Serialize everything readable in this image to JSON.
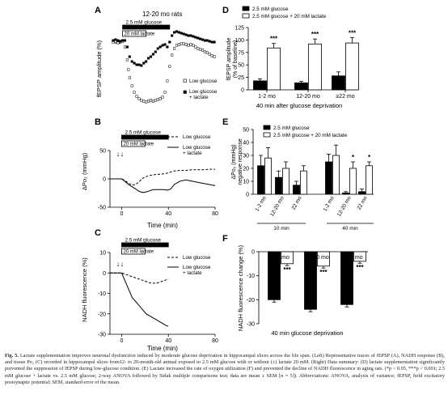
{
  "caption": {
    "label": "Fig. 5.",
    "text": "Lactate supplementation improves neuronal dysfunction induced by moderate glucose deprivation in hippocampal slices across the life span. (Left) Representative traces of fEPSP (A), NADH response (B), and tissue Po₂ (C) recorded in hippocampal slices from12- to 20-month-old animal exposed to 2.5 mM glucose with or without (±) lactate 20 mM. (Right) Data summary: (D) lactate supplementation significantly prevented the suppression of fEPSP during low-glucose condition. (E) Lactate increased the rate of oxygen utilization (F) and prevented the decline of NADH fluorescence in aging rats. (*p < 0.05, ***p < 0.001; 2.5 mM glucose + lactate vs. 2.5 mM glucose; 2-way ANOVA followed by Sidak multiple comparisons test; data are mean ± SEM [n = 5]). Abbreviations: ANOVA, analysis of variance; fEPSP, field excitatory postsynaptic potential; SEM, standard error of the mean."
  },
  "chart_data": [
    {
      "panel": "A",
      "type": "scatter",
      "title": "12-20 mo rats",
      "ylabel": "fEPSP amplitude (%)",
      "bars": [
        "2.5 mM glucose",
        "20 mM lactate"
      ],
      "xlim": [
        -10,
        80
      ],
      "ylim": [
        0,
        100
      ],
      "series": [
        {
          "name": "Low glucose",
          "marker": "open-square",
          "x": [
            -8,
            -6,
            -4,
            -2,
            0,
            2,
            4,
            5,
            6,
            8,
            10,
            12,
            14,
            16,
            18,
            20,
            22,
            24,
            26,
            28,
            30,
            32,
            34,
            36,
            38,
            40,
            42,
            44,
            46,
            48,
            50,
            52,
            54,
            56,
            58,
            60,
            62,
            64,
            66,
            68,
            70,
            72,
            74,
            76,
            78
          ],
          "y": [
            78,
            79,
            77,
            78,
            79,
            72,
            56,
            44,
            34,
            24,
            16,
            11,
            8,
            6,
            5,
            4,
            5,
            6,
            5,
            6,
            7,
            8,
            10,
            16,
            30,
            48,
            62,
            70,
            74,
            75,
            76,
            76,
            75,
            74,
            75,
            74,
            72,
            70,
            69,
            68,
            66,
            65,
            63,
            61,
            60
          ]
        },
        {
          "name": "Low glucose + lactate",
          "marker": "filled-square",
          "x": [
            -8,
            -6,
            -4,
            -2,
            0,
            2,
            4,
            6,
            8,
            10,
            12,
            14,
            16,
            18,
            20,
            22,
            24,
            26,
            28,
            30,
            32,
            34,
            36,
            38,
            40,
            42,
            44,
            46,
            48,
            50,
            52,
            54,
            56,
            58,
            60,
            62,
            64,
            66,
            68,
            70,
            72,
            74,
            76,
            78
          ],
          "y": [
            80,
            81,
            80,
            79,
            80,
            80,
            72,
            60,
            54,
            52,
            50,
            50,
            49,
            52,
            54,
            58,
            60,
            63,
            66,
            70,
            72,
            74,
            75,
            72,
            78,
            86,
            90,
            91,
            90,
            89,
            88,
            87,
            86,
            86,
            85,
            84,
            83,
            82,
            81,
            80,
            80,
            79,
            78,
            78
          ]
        }
      ]
    },
    {
      "panel": "B",
      "type": "line",
      "ylabel": "ΔPo₂ (mmHg)",
      "xlabel": "Time (min)",
      "bars": [
        "2.5 mM glucose",
        "20 mM lactate"
      ],
      "xlim": [
        -10,
        80
      ],
      "ylim": [
        -50,
        50
      ],
      "xticks": [
        0,
        40,
        80
      ],
      "yticks": [
        -50,
        0,
        50
      ],
      "series": [
        {
          "name": "Low glucose",
          "style": "dashed",
          "x": [
            -10,
            -5,
            0,
            3,
            6,
            9,
            12,
            15,
            18,
            21,
            24,
            27,
            30,
            33,
            36,
            39,
            42,
            45,
            50,
            55,
            60,
            65,
            70,
            75,
            80
          ],
          "y": [
            0,
            0,
            0,
            -3,
            -8,
            -11,
            -10,
            -5,
            1,
            4,
            6,
            7,
            8,
            8,
            9,
            10,
            12,
            14,
            15,
            15,
            16,
            16,
            16,
            17,
            17
          ]
        },
        {
          "name": "Low glucose + lactate",
          "style": "solid",
          "x": [
            -10,
            -5,
            0,
            3,
            6,
            9,
            12,
            15,
            18,
            21,
            24,
            27,
            30,
            33,
            36,
            39,
            42,
            45,
            50,
            55,
            60,
            65,
            70,
            75,
            80
          ],
          "y": [
            0,
            0,
            0,
            -5,
            -10,
            -14,
            -18,
            -22,
            -24,
            -23,
            -21,
            -19,
            -19,
            -19,
            -19,
            -20,
            -18,
            -10,
            -4,
            -2,
            -4,
            -6,
            -8,
            -10,
            -12
          ]
        }
      ]
    },
    {
      "panel": "C",
      "type": "line",
      "ylabel": "NADH fluorescence (%)",
      "xlabel": "Time (min)",
      "bars": [
        "2.5 mM glucose",
        "20 mM lactate"
      ],
      "xlim": [
        -10,
        80
      ],
      "ylim": [
        -30,
        10
      ],
      "xticks": [
        0,
        40,
        80
      ],
      "yticks": [
        -30,
        -20,
        -10,
        0,
        10
      ],
      "series": [
        {
          "name": "Low glucose",
          "style": "dashed",
          "x": [
            -10,
            -5,
            0,
            5,
            10,
            15,
            20,
            25,
            30,
            35,
            40
          ],
          "y": [
            0,
            0,
            0,
            -1,
            -2,
            -3,
            -4,
            -5,
            -5,
            -4,
            -3
          ]
        },
        {
          "name": "Low glucose + lactate",
          "style": "solid",
          "x": [
            -10,
            -5,
            0,
            3,
            6,
            9,
            12,
            15,
            18,
            21,
            24,
            27,
            30,
            33,
            36,
            39,
            40
          ],
          "y": [
            0,
            0,
            0,
            -4,
            -8,
            -12,
            -14,
            -16,
            -18,
            -20,
            -21,
            -22,
            -23,
            -24,
            -25,
            -26,
            -26
          ]
        }
      ]
    },
    {
      "panel": "D",
      "type": "bar",
      "ylabel": "fEPSP amplitude (% of baseline)",
      "xlabel": "40 min after glucose deprivation",
      "categories": [
        "1-2 mo",
        "12-20 mo",
        "≥22 mo"
      ],
      "ylim": [
        0,
        125
      ],
      "yticks": [
        0,
        25,
        50,
        75,
        100,
        125
      ],
      "series": [
        {
          "name": "2.5 mM glucose",
          "values": [
            18,
            14,
            28
          ],
          "sem": [
            4,
            3,
            8
          ],
          "fill": "#000000"
        },
        {
          "name": "2.5 mM glucose + 20 mM lactate",
          "values": [
            84,
            92,
            94
          ],
          "sem": [
            9,
            10,
            11
          ],
          "fill": "#ffffff"
        }
      ],
      "annotations": [
        "***",
        "***",
        "***"
      ]
    },
    {
      "panel": "E",
      "type": "bar",
      "ylabel": "ΔPo₂ (mmHg) negative response",
      "categories": [
        "1-2 mo",
        "12-20 mo",
        "22 mo",
        "1-2 mo",
        "12-20 mo",
        "22 mo"
      ],
      "groups": [
        "10 min",
        "40 min"
      ],
      "ylim": [
        0,
        50
      ],
      "yticks": [
        0,
        10,
        20,
        30,
        40,
        50
      ],
      "series": [
        {
          "name": "2.5 mM glucose",
          "values": [
            22,
            13,
            7,
            25,
            1,
            2
          ],
          "sem": [
            8,
            5,
            3,
            6,
            1,
            2
          ],
          "fill": "#000000"
        },
        {
          "name": "2.5 mM glucose + 20 mM lactate",
          "values": [
            28,
            20,
            18,
            30,
            20,
            22
          ],
          "sem": [
            8,
            5,
            4,
            8,
            5,
            3
          ],
          "fill": "#ffffff"
        }
      ],
      "annotations": [
        "",
        "",
        "",
        "",
        "*",
        "*"
      ]
    },
    {
      "panel": "F",
      "type": "bar",
      "ylabel": "NADH fluorescence change (%)",
      "xlabel": "40 min glucose deprivation",
      "categories": [
        "1-2 mo",
        "12-20 mo",
        "≥22 mo"
      ],
      "ylim": [
        -30,
        0
      ],
      "yticks": [
        -30,
        -20,
        -10,
        0
      ],
      "series": [
        {
          "name": "2.5 mM glucose",
          "values": [
            -20,
            -24,
            -22
          ],
          "sem": [
            1,
            1,
            1
          ],
          "fill": "#000000"
        },
        {
          "name": "2.5 mM glucose + 20 mM lactate",
          "values": [
            -5,
            -6,
            -4
          ],
          "sem": [
            0.8,
            0.8,
            0.8
          ],
          "fill": "#ffffff"
        }
      ],
      "annotations": [
        "***",
        "***",
        "***"
      ]
    }
  ]
}
